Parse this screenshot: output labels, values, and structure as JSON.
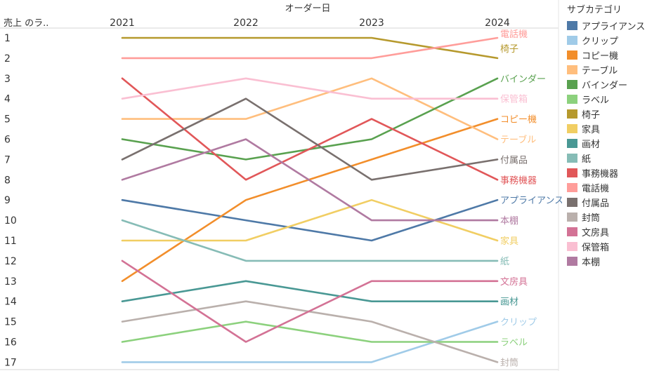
{
  "chart_data": {
    "type": "line",
    "chart_kind": "bump",
    "title": "",
    "x_title": "オーダー日",
    "row_header": "売上 のラ..",
    "x": [
      "2021",
      "2022",
      "2023",
      "2024"
    ],
    "ranks": [
      "1",
      "2",
      "3",
      "4",
      "5",
      "6",
      "7",
      "8",
      "9",
      "10",
      "11",
      "12",
      "13",
      "14",
      "15",
      "16",
      "17"
    ],
    "ylim": [
      1,
      17
    ],
    "y_inverted": true,
    "series": [
      {
        "name": "アプライアンス",
        "color": "#4e79a7",
        "values": [
          9,
          10,
          11,
          9
        ]
      },
      {
        "name": "クリップ",
        "color": "#a0cbe8",
        "values": [
          17,
          17,
          17,
          15
        ]
      },
      {
        "name": "コピー機",
        "color": "#f28e2b",
        "values": [
          13,
          9,
          7,
          5
        ]
      },
      {
        "name": "テーブル",
        "color": "#ffbe7d",
        "values": [
          5,
          5,
          3,
          6
        ]
      },
      {
        "name": "バインダー",
        "color": "#59a14f",
        "values": [
          6,
          7,
          6,
          3
        ]
      },
      {
        "name": "ラベル",
        "color": "#8cd17d",
        "values": [
          16,
          15,
          16,
          16
        ]
      },
      {
        "name": "椅子",
        "color": "#b6992d",
        "values": [
          1,
          1,
          1,
          2
        ]
      },
      {
        "name": "家具",
        "color": "#f1ce63",
        "values": [
          11,
          11,
          9,
          11
        ]
      },
      {
        "name": "画材",
        "color": "#499894",
        "values": [
          14,
          13,
          14,
          14
        ]
      },
      {
        "name": "紙",
        "color": "#86bcb6",
        "values": [
          10,
          12,
          12,
          12
        ]
      },
      {
        "name": "事務機器",
        "color": "#e15759",
        "values": [
          3,
          8,
          5,
          8
        ]
      },
      {
        "name": "電話機",
        "color": "#ff9d9a",
        "values": [
          2,
          2,
          2,
          1
        ]
      },
      {
        "name": "付属品",
        "color": "#79706e",
        "values": [
          7,
          4,
          8,
          7
        ]
      },
      {
        "name": "封筒",
        "color": "#bab0ac",
        "values": [
          15,
          14,
          15,
          17
        ]
      },
      {
        "name": "文房具",
        "color": "#d37295",
        "values": [
          12,
          16,
          13,
          13
        ]
      },
      {
        "name": "保管箱",
        "color": "#fabfd2",
        "values": [
          4,
          3,
          4,
          4
        ]
      },
      {
        "name": "本棚",
        "color": "#b07aa1",
        "values": [
          8,
          6,
          10,
          10
        ]
      }
    ],
    "grid": false,
    "legend": {
      "title": "サブカテゴリ",
      "position": "right"
    }
  }
}
